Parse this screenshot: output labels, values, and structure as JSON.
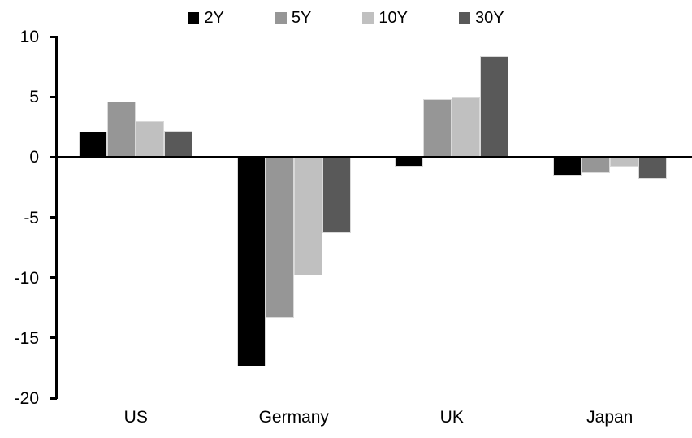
{
  "chart_data": {
    "type": "bar",
    "title": "",
    "categories": [
      "US",
      "Germany",
      "UK",
      "Japan"
    ],
    "series": [
      {
        "name": "2Y",
        "color": "#000000",
        "values": [
          2.1,
          -17.4,
          -0.8,
          -1.5
        ]
      },
      {
        "name": "5Y",
        "color": "#969696",
        "values": [
          4.6,
          -13.3,
          4.8,
          -1.3
        ]
      },
      {
        "name": "10Y",
        "color": "#c0c0c0",
        "values": [
          3.0,
          -9.8,
          5.0,
          -0.8
        ]
      },
      {
        "name": "30Y",
        "color": "#595959",
        "values": [
          2.2,
          -6.3,
          8.4,
          -1.8
        ]
      }
    ],
    "ylim": [
      -20,
      10
    ],
    "ytick_interval": 5,
    "yticks": [
      "10",
      "5",
      "0",
      "-5",
      "-10",
      "-15",
      "-20"
    ],
    "xlabel": "",
    "ylabel": "",
    "grid": false,
    "legend_position": "top",
    "background_color": "#ffffff",
    "axis_color": "#000000"
  }
}
